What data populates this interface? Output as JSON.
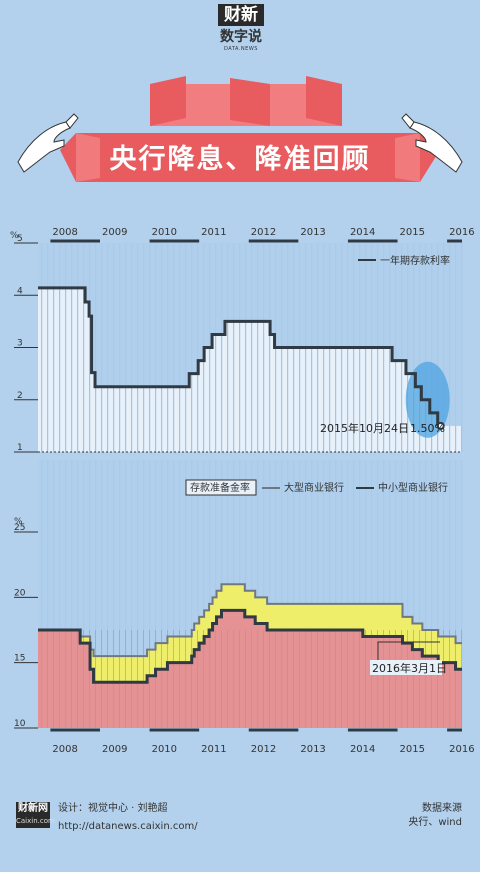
{
  "brand": {
    "name": "财新",
    "sub": "数字说",
    "tiny": "DATA.NEWS"
  },
  "title": "央行降息、降准回顾",
  "years": [
    "2008",
    "2009",
    "2010",
    "2011",
    "2012",
    "2013",
    "2014",
    "2015",
    "2016"
  ],
  "percent_symbol": "%",
  "chart_data": [
    {
      "type": "line",
      "ylim": [
        1,
        5
      ],
      "y_ticks": [
        1,
        2,
        3,
        4,
        5
      ],
      "x_range": [
        2007.75,
        2016.3
      ],
      "series": [
        {
          "name": "一年期存款利率",
          "points": [
            [
              2007.75,
              4.14
            ],
            [
              2008.7,
              4.14
            ],
            [
              2008.7,
              3.87
            ],
            [
              2008.78,
              3.87
            ],
            [
              2008.78,
              3.6
            ],
            [
              2008.83,
              3.6
            ],
            [
              2008.83,
              2.52
            ],
            [
              2008.9,
              2.52
            ],
            [
              2008.9,
              2.25
            ],
            [
              2010.8,
              2.25
            ],
            [
              2010.8,
              2.5
            ],
            [
              2010.98,
              2.5
            ],
            [
              2010.98,
              2.75
            ],
            [
              2011.1,
              2.75
            ],
            [
              2011.1,
              3.0
            ],
            [
              2011.26,
              3.0
            ],
            [
              2011.26,
              3.25
            ],
            [
              2011.52,
              3.25
            ],
            [
              2011.52,
              3.5
            ],
            [
              2012.43,
              3.5
            ],
            [
              2012.43,
              3.25
            ],
            [
              2012.52,
              3.25
            ],
            [
              2012.52,
              3.0
            ],
            [
              2014.89,
              3.0
            ],
            [
              2014.89,
              2.75
            ],
            [
              2015.17,
              2.75
            ],
            [
              2015.17,
              2.5
            ],
            [
              2015.36,
              2.5
            ],
            [
              2015.36,
              2.25
            ],
            [
              2015.48,
              2.25
            ],
            [
              2015.48,
              2.0
            ],
            [
              2015.65,
              2.0
            ],
            [
              2015.65,
              1.75
            ],
            [
              2015.81,
              1.75
            ],
            [
              2015.81,
              1.5
            ]
          ]
        }
      ],
      "annotation": {
        "label": "2015年10月24日",
        "value_label": "1.50%",
        "x": 2015.81,
        "y": 1.5
      }
    },
    {
      "type": "area",
      "ylim": [
        10,
        25
      ],
      "y_ticks": [
        10,
        15,
        20,
        25
      ],
      "x_range": [
        2007.75,
        2016.3
      ],
      "legend_title": "存款准备金率",
      "series": [
        {
          "name": "大型商业银行",
          "points": [
            [
              2007.75,
              17.5
            ],
            [
              2008.6,
              17.5
            ],
            [
              2008.6,
              17.0
            ],
            [
              2008.8,
              17.0
            ],
            [
              2008.8,
              16.0
            ],
            [
              2008.87,
              16.0
            ],
            [
              2008.87,
              15.5
            ],
            [
              2009.95,
              15.5
            ],
            [
              2009.95,
              16.0
            ],
            [
              2010.12,
              16.0
            ],
            [
              2010.12,
              16.5
            ],
            [
              2010.36,
              16.5
            ],
            [
              2010.36,
              17.0
            ],
            [
              2010.85,
              17.0
            ],
            [
              2010.85,
              17.5
            ],
            [
              2010.9,
              17.5
            ],
            [
              2010.9,
              18.0
            ],
            [
              2011.0,
              18.0
            ],
            [
              2011.0,
              18.5
            ],
            [
              2011.1,
              18.5
            ],
            [
              2011.1,
              19.0
            ],
            [
              2011.2,
              19.0
            ],
            [
              2011.2,
              19.5
            ],
            [
              2011.27,
              19.5
            ],
            [
              2011.27,
              20.0
            ],
            [
              2011.35,
              20.0
            ],
            [
              2011.35,
              20.5
            ],
            [
              2011.45,
              20.5
            ],
            [
              2011.45,
              21.0
            ],
            [
              2011.92,
              21.0
            ],
            [
              2011.92,
              20.5
            ],
            [
              2012.13,
              20.5
            ],
            [
              2012.13,
              20.0
            ],
            [
              2012.37,
              20.0
            ],
            [
              2012.37,
              19.5
            ],
            [
              2015.1,
              19.5
            ],
            [
              2015.1,
              18.5
            ],
            [
              2015.3,
              18.5
            ],
            [
              2015.3,
              18.0
            ],
            [
              2015.5,
              18.0
            ],
            [
              2015.5,
              17.5
            ],
            [
              2015.82,
              17.5
            ],
            [
              2015.82,
              17.0
            ],
            [
              2016.17,
              17.0
            ],
            [
              2016.17,
              16.5
            ],
            [
              2016.3,
              16.5
            ]
          ]
        },
        {
          "name": "中小型商业银行",
          "points": [
            [
              2007.75,
              17.5
            ],
            [
              2008.6,
              17.5
            ],
            [
              2008.6,
              16.5
            ],
            [
              2008.8,
              16.5
            ],
            [
              2008.8,
              14.5
            ],
            [
              2008.87,
              14.5
            ],
            [
              2008.87,
              13.5
            ],
            [
              2009.95,
              13.5
            ],
            [
              2009.95,
              14.0
            ],
            [
              2010.12,
              14.0
            ],
            [
              2010.12,
              14.5
            ],
            [
              2010.36,
              14.5
            ],
            [
              2010.36,
              15.0
            ],
            [
              2010.85,
              15.0
            ],
            [
              2010.85,
              15.5
            ],
            [
              2010.9,
              15.5
            ],
            [
              2010.9,
              16.0
            ],
            [
              2011.0,
              16.0
            ],
            [
              2011.0,
              16.5
            ],
            [
              2011.1,
              16.5
            ],
            [
              2011.1,
              17.0
            ],
            [
              2011.2,
              17.0
            ],
            [
              2011.2,
              17.5
            ],
            [
              2011.27,
              17.5
            ],
            [
              2011.27,
              18.0
            ],
            [
              2011.35,
              18.0
            ],
            [
              2011.35,
              18.5
            ],
            [
              2011.45,
              18.5
            ],
            [
              2011.45,
              19.0
            ],
            [
              2011.92,
              19.0
            ],
            [
              2011.92,
              18.5
            ],
            [
              2012.13,
              18.5
            ],
            [
              2012.13,
              18.0
            ],
            [
              2012.37,
              18.0
            ],
            [
              2012.37,
              17.5
            ],
            [
              2014.3,
              17.5
            ],
            [
              2014.3,
              17.0
            ],
            [
              2015.1,
              17.0
            ],
            [
              2015.1,
              16.5
            ],
            [
              2015.3,
              16.5
            ],
            [
              2015.3,
              16.0
            ],
            [
              2015.5,
              16.0
            ],
            [
              2015.5,
              15.5
            ],
            [
              2015.82,
              15.5
            ],
            [
              2015.82,
              15.0
            ],
            [
              2016.17,
              15.0
            ],
            [
              2016.17,
              14.5
            ],
            [
              2016.3,
              14.5
            ]
          ]
        }
      ],
      "annotation": {
        "label": "2016年3月1日"
      }
    }
  ],
  "footer": {
    "logo_main": "财新网",
    "logo_sub": "Caixin.com",
    "design": "设计：视觉中心 · 刘艳超",
    "url": "http://datanews.caixin.com/",
    "source_title": "数据来源",
    "source": "央行、wind"
  },
  "colors": {
    "background": "#b3d1ec",
    "panel": "#e8f1fa",
    "line": "#2f3a44",
    "banner": "#e85b5f",
    "banner_light": "#f07a7c",
    "fill_red": "#e59294",
    "fill_yellow": "#efee6a",
    "fill_blue": "#a9cbea",
    "highlight": "#4da3e0"
  }
}
